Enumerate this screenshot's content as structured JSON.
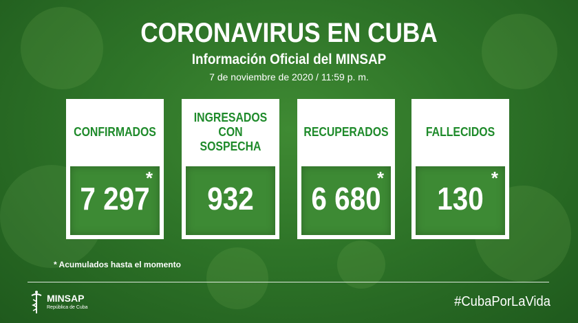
{
  "header": {
    "title": "CORONAVIRUS EN CUBA",
    "subtitle": "Información Oficial del MINSAP",
    "date": "7 de noviembre de 2020 / 11:59 p. m."
  },
  "cards": [
    {
      "label": "CONFIRMADOS",
      "value": "7 297",
      "star": "*"
    },
    {
      "label": "INGRESADOS\nCON SOSPECHA",
      "value": "932",
      "star": ""
    },
    {
      "label": "RECUPERADOS",
      "value": "6 680",
      "star": "*"
    },
    {
      "label": "FALLECIDOS",
      "value": "130",
      "star": "*"
    }
  ],
  "footnote": "* Acumulados hasta el momento",
  "logo": {
    "name": "MINSAP",
    "sub": "República de Cuba"
  },
  "hashtag": "#CubaPorLaVida",
  "colors": {
    "background": "#2e7428",
    "label_green": "#1e8a2a",
    "value_box": "#3d8a34"
  }
}
